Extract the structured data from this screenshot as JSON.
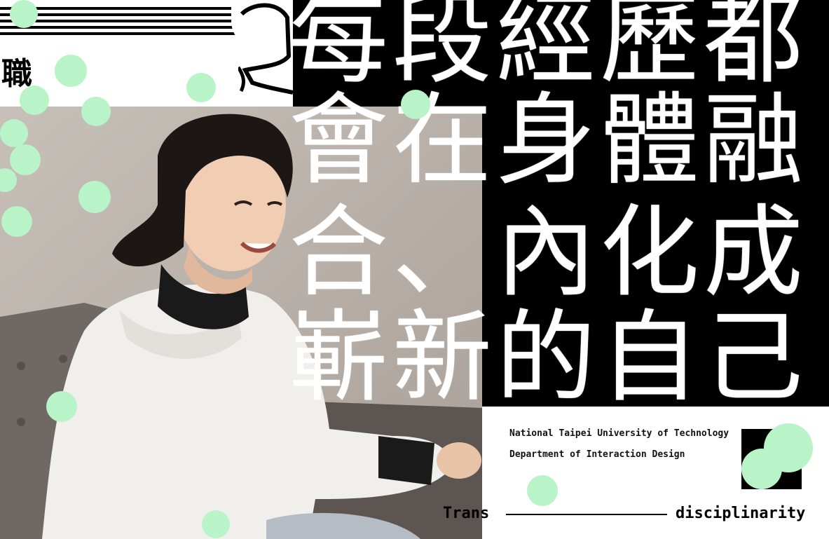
{
  "headline": {
    "lines": [
      "每段經歷都",
      "會在身體融",
      "合、內化成",
      "嶄新的自己"
    ]
  },
  "side_char": "職",
  "institution": {
    "university": "National Taipei University of Technology",
    "department": "Department of Interaction Design"
  },
  "tagline": {
    "left": "Trans",
    "right": "disciplinarity"
  },
  "colors": {
    "accent_green": "#b9f4c8",
    "panel_black": "#000000",
    "background": "#ffffff"
  }
}
